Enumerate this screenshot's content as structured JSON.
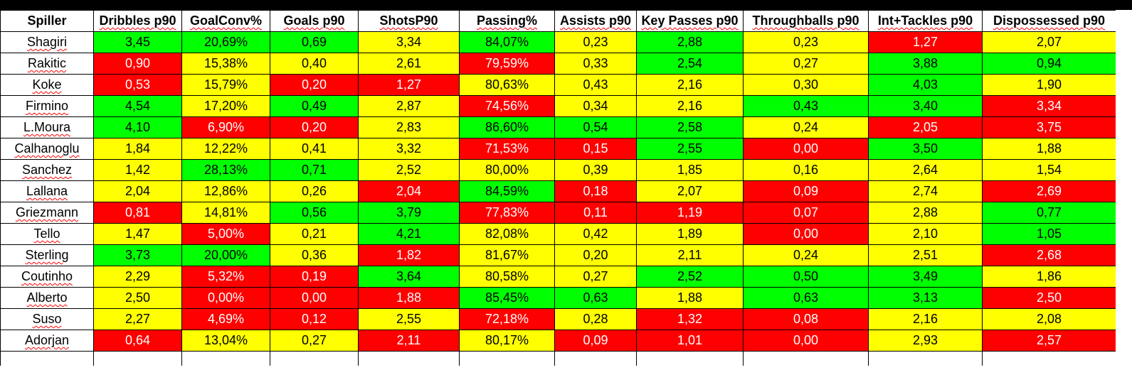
{
  "colors": {
    "green": "#00ff00",
    "yellow": "#ffff00",
    "red": "#ff0000"
  },
  "headers": [
    "Spiller",
    "Dribbles p90",
    "GoalConv%",
    "Goals p90",
    "ShotsP90",
    "Passing%",
    "Assists p90",
    "Key Passes p90",
    "Throughballs p90",
    "Int+Tackles p90",
    "Dispossessed p90"
  ],
  "rows": [
    {
      "name": "Shagiri",
      "cells": [
        {
          "v": "3,45",
          "c": "green"
        },
        {
          "v": "20,69%",
          "c": "green"
        },
        {
          "v": "0,69",
          "c": "green"
        },
        {
          "v": "3,34",
          "c": "yellow"
        },
        {
          "v": "84,07%",
          "c": "green"
        },
        {
          "v": "0,23",
          "c": "yellow"
        },
        {
          "v": "2,88",
          "c": "green"
        },
        {
          "v": "0,23",
          "c": "yellow"
        },
        {
          "v": "1,27",
          "c": "red"
        },
        {
          "v": "2,07",
          "c": "yellow"
        }
      ]
    },
    {
      "name": "Rakitic",
      "cells": [
        {
          "v": "0,90",
          "c": "red"
        },
        {
          "v": "15,38%",
          "c": "yellow"
        },
        {
          "v": "0,40",
          "c": "yellow"
        },
        {
          "v": "2,61",
          "c": "yellow"
        },
        {
          "v": "79,59%",
          "c": "red"
        },
        {
          "v": "0,33",
          "c": "yellow"
        },
        {
          "v": "2,54",
          "c": "green"
        },
        {
          "v": "0,27",
          "c": "yellow"
        },
        {
          "v": "3,88",
          "c": "green"
        },
        {
          "v": "0,94",
          "c": "green"
        }
      ]
    },
    {
      "name": "Koke",
      "cells": [
        {
          "v": "0,53",
          "c": "red"
        },
        {
          "v": "15,79%",
          "c": "yellow"
        },
        {
          "v": "0,20",
          "c": "red"
        },
        {
          "v": "1,27",
          "c": "red"
        },
        {
          "v": "80,63%",
          "c": "yellow"
        },
        {
          "v": "0,43",
          "c": "yellow"
        },
        {
          "v": "2,16",
          "c": "yellow"
        },
        {
          "v": "0,30",
          "c": "yellow"
        },
        {
          "v": "4,03",
          "c": "green"
        },
        {
          "v": "1,90",
          "c": "yellow"
        }
      ]
    },
    {
      "name": "Firmino",
      "cells": [
        {
          "v": "4,54",
          "c": "green"
        },
        {
          "v": "17,20%",
          "c": "yellow"
        },
        {
          "v": "0,49",
          "c": "green"
        },
        {
          "v": "2,87",
          "c": "yellow"
        },
        {
          "v": "74,56%",
          "c": "red"
        },
        {
          "v": "0,34",
          "c": "yellow"
        },
        {
          "v": "2,16",
          "c": "yellow"
        },
        {
          "v": "0,43",
          "c": "green"
        },
        {
          "v": "3,40",
          "c": "green"
        },
        {
          "v": "3,34",
          "c": "red"
        }
      ]
    },
    {
      "name": "L.Moura",
      "cells": [
        {
          "v": "4,10",
          "c": "green"
        },
        {
          "v": "6,90%",
          "c": "red"
        },
        {
          "v": "0,20",
          "c": "red"
        },
        {
          "v": "2,83",
          "c": "yellow"
        },
        {
          "v": "86,60%",
          "c": "green"
        },
        {
          "v": "0,54",
          "c": "green"
        },
        {
          "v": "2,58",
          "c": "green"
        },
        {
          "v": "0,24",
          "c": "yellow"
        },
        {
          "v": "2,05",
          "c": "red"
        },
        {
          "v": "3,75",
          "c": "red"
        }
      ]
    },
    {
      "name": "Calhanoglu",
      "cells": [
        {
          "v": "1,84",
          "c": "yellow"
        },
        {
          "v": "12,22%",
          "c": "yellow"
        },
        {
          "v": "0,41",
          "c": "yellow"
        },
        {
          "v": "3,32",
          "c": "yellow"
        },
        {
          "v": "71,53%",
          "c": "red"
        },
        {
          "v": "0,15",
          "c": "red"
        },
        {
          "v": "2,55",
          "c": "green"
        },
        {
          "v": "0,00",
          "c": "red"
        },
        {
          "v": "3,50",
          "c": "green"
        },
        {
          "v": "1,88",
          "c": "yellow"
        }
      ]
    },
    {
      "name": "Sanchez",
      "cells": [
        {
          "v": "1,42",
          "c": "yellow"
        },
        {
          "v": "28,13%",
          "c": "green"
        },
        {
          "v": "0,71",
          "c": "green"
        },
        {
          "v": "2,52",
          "c": "yellow"
        },
        {
          "v": "80,00%",
          "c": "yellow"
        },
        {
          "v": "0,39",
          "c": "yellow"
        },
        {
          "v": "1,85",
          "c": "yellow"
        },
        {
          "v": "0,16",
          "c": "yellow"
        },
        {
          "v": "2,64",
          "c": "yellow"
        },
        {
          "v": "1,54",
          "c": "yellow"
        }
      ]
    },
    {
      "name": "Lallana",
      "cells": [
        {
          "v": "2,04",
          "c": "yellow"
        },
        {
          "v": "12,86%",
          "c": "yellow"
        },
        {
          "v": "0,26",
          "c": "yellow"
        },
        {
          "v": "2,04",
          "c": "red"
        },
        {
          "v": "84,59%",
          "c": "green"
        },
        {
          "v": "0,18",
          "c": "red"
        },
        {
          "v": "2,07",
          "c": "yellow"
        },
        {
          "v": "0,09",
          "c": "red"
        },
        {
          "v": "2,74",
          "c": "yellow"
        },
        {
          "v": "2,69",
          "c": "red"
        }
      ]
    },
    {
      "name": "Griezmann",
      "cells": [
        {
          "v": "0,81",
          "c": "red"
        },
        {
          "v": "14,81%",
          "c": "yellow"
        },
        {
          "v": "0,56",
          "c": "green"
        },
        {
          "v": "3,79",
          "c": "green"
        },
        {
          "v": "77,83%",
          "c": "red"
        },
        {
          "v": "0,11",
          "c": "red"
        },
        {
          "v": "1,19",
          "c": "red"
        },
        {
          "v": "0,07",
          "c": "red"
        },
        {
          "v": "2,88",
          "c": "yellow"
        },
        {
          "v": "0,77",
          "c": "green"
        }
      ]
    },
    {
      "name": "Tello",
      "cells": [
        {
          "v": "1,47",
          "c": "yellow"
        },
        {
          "v": "5,00%",
          "c": "red"
        },
        {
          "v": "0,21",
          "c": "yellow"
        },
        {
          "v": "4,21",
          "c": "green"
        },
        {
          "v": "82,08%",
          "c": "yellow"
        },
        {
          "v": "0,42",
          "c": "yellow"
        },
        {
          "v": "1,89",
          "c": "yellow"
        },
        {
          "v": "0,00",
          "c": "red"
        },
        {
          "v": "2,10",
          "c": "yellow"
        },
        {
          "v": "1,05",
          "c": "green"
        }
      ]
    },
    {
      "name": "Sterling",
      "cells": [
        {
          "v": "3,73",
          "c": "green"
        },
        {
          "v": "20,00%",
          "c": "green"
        },
        {
          "v": "0,36",
          "c": "yellow"
        },
        {
          "v": "1,82",
          "c": "red"
        },
        {
          "v": "81,67%",
          "c": "yellow"
        },
        {
          "v": "0,20",
          "c": "yellow"
        },
        {
          "v": "2,11",
          "c": "yellow"
        },
        {
          "v": "0,24",
          "c": "yellow"
        },
        {
          "v": "2,51",
          "c": "yellow"
        },
        {
          "v": "2,68",
          "c": "red"
        }
      ]
    },
    {
      "name": "Coutinho",
      "cells": [
        {
          "v": "2,29",
          "c": "yellow"
        },
        {
          "v": "5,32%",
          "c": "red"
        },
        {
          "v": "0,19",
          "c": "red"
        },
        {
          "v": "3,64",
          "c": "green"
        },
        {
          "v": "80,58%",
          "c": "yellow"
        },
        {
          "v": "0,27",
          "c": "yellow"
        },
        {
          "v": "2,52",
          "c": "green"
        },
        {
          "v": "0,50",
          "c": "green"
        },
        {
          "v": "3,49",
          "c": "green"
        },
        {
          "v": "1,86",
          "c": "yellow"
        }
      ]
    },
    {
      "name": "Alberto",
      "cells": [
        {
          "v": "2,50",
          "c": "yellow"
        },
        {
          "v": "0,00%",
          "c": "red"
        },
        {
          "v": "0,00",
          "c": "red"
        },
        {
          "v": "1,88",
          "c": "red"
        },
        {
          "v": "85,45%",
          "c": "green"
        },
        {
          "v": "0,63",
          "c": "green"
        },
        {
          "v": "1,88",
          "c": "yellow"
        },
        {
          "v": "0,63",
          "c": "green"
        },
        {
          "v": "3,13",
          "c": "green"
        },
        {
          "v": "2,50",
          "c": "red"
        }
      ]
    },
    {
      "name": "Suso",
      "cells": [
        {
          "v": "2,27",
          "c": "yellow"
        },
        {
          "v": "4,69%",
          "c": "red"
        },
        {
          "v": "0,12",
          "c": "red"
        },
        {
          "v": "2,55",
          "c": "yellow"
        },
        {
          "v": "72,18%",
          "c": "red"
        },
        {
          "v": "0,28",
          "c": "yellow"
        },
        {
          "v": "1,32",
          "c": "red"
        },
        {
          "v": "0,08",
          "c": "red"
        },
        {
          "v": "2,16",
          "c": "yellow"
        },
        {
          "v": "2,08",
          "c": "yellow"
        }
      ]
    },
    {
      "name": "Adorjan",
      "cells": [
        {
          "v": "0,64",
          "c": "red"
        },
        {
          "v": "13,04%",
          "c": "yellow"
        },
        {
          "v": "0,27",
          "c": "yellow"
        },
        {
          "v": "2,11",
          "c": "red"
        },
        {
          "v": "80,17%",
          "c": "yellow"
        },
        {
          "v": "0,09",
          "c": "red"
        },
        {
          "v": "1,01",
          "c": "red"
        },
        {
          "v": "0,00",
          "c": "red"
        },
        {
          "v": "2,93",
          "c": "yellow"
        },
        {
          "v": "2,57",
          "c": "red"
        }
      ]
    }
  ]
}
